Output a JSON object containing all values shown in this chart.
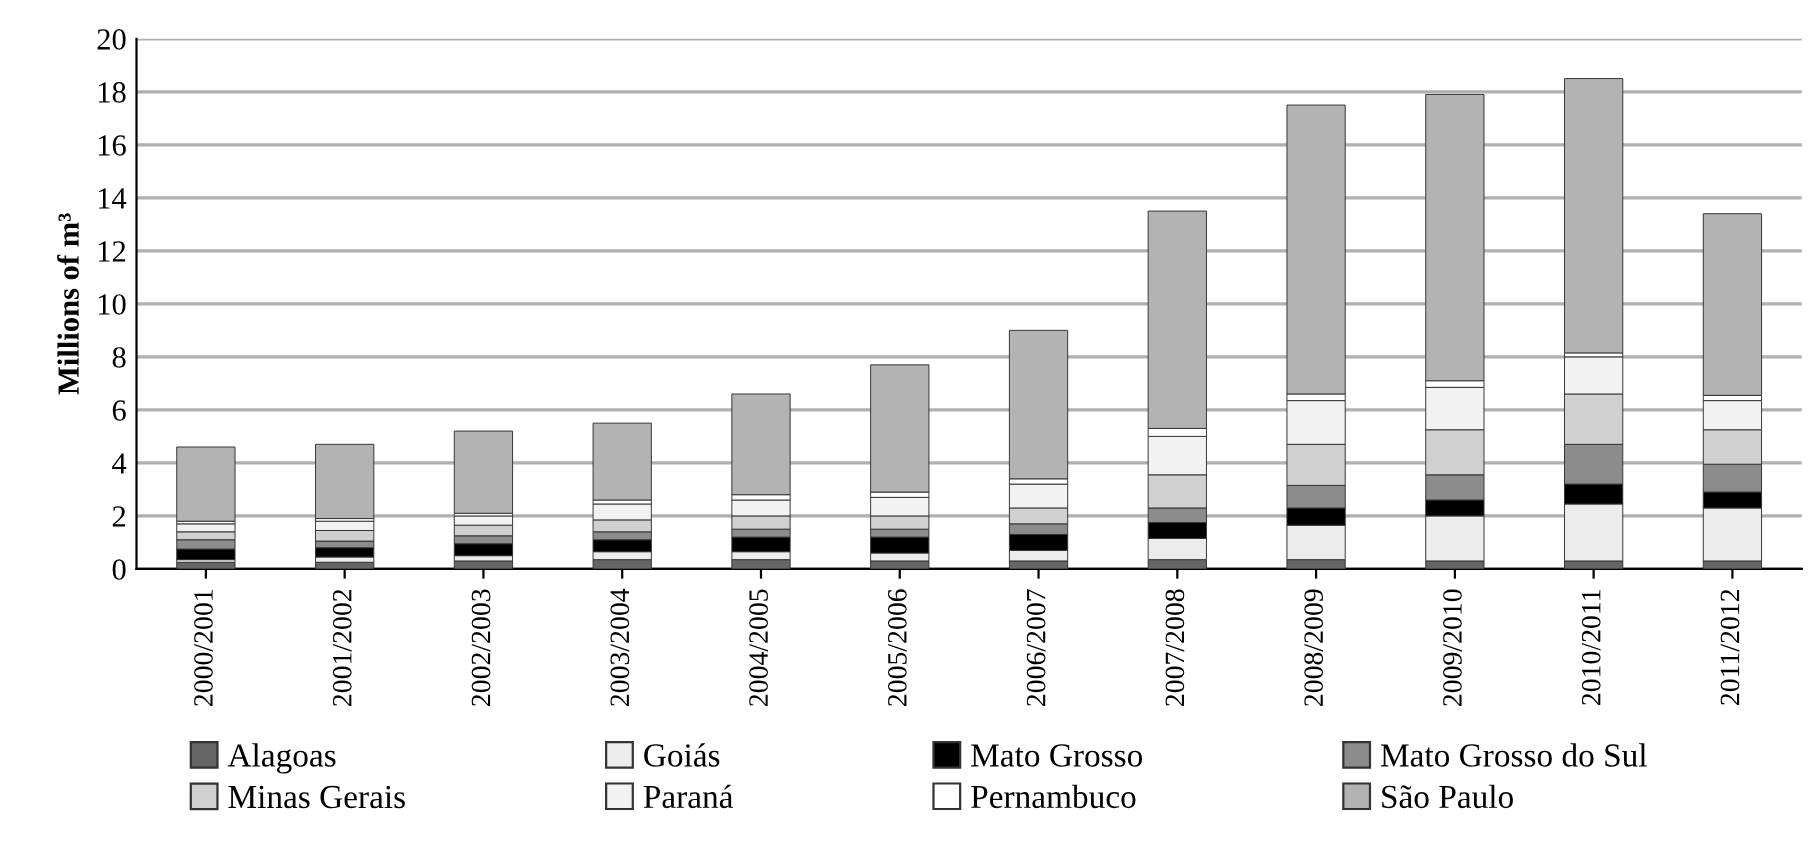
{
  "chart_data": {
    "type": "bar",
    "stacked": true,
    "ylabel": "Millions of m³",
    "categories": [
      "2000/2001",
      "2001/2002",
      "2002/2003",
      "2003/2004",
      "2004/2005",
      "2005/2006",
      "2006/2007",
      "2007/2008",
      "2008/2009",
      "2009/2010",
      "2010/2011",
      "2011/2012"
    ],
    "series": [
      {
        "name": "Alagoas",
        "color": "#666666",
        "values": [
          0.25,
          0.25,
          0.3,
          0.35,
          0.35,
          0.3,
          0.3,
          0.35,
          0.35,
          0.3,
          0.3,
          0.3
        ]
      },
      {
        "name": "Goiás",
        "color": "#ececec",
        "values": [
          0.1,
          0.2,
          0.2,
          0.3,
          0.3,
          0.3,
          0.4,
          0.8,
          1.3,
          1.7,
          2.15,
          2.0
        ]
      },
      {
        "name": "Mato Grosso",
        "color": "#000000",
        "values": [
          0.4,
          0.35,
          0.45,
          0.45,
          0.55,
          0.6,
          0.6,
          0.6,
          0.65,
          0.6,
          0.75,
          0.6
        ]
      },
      {
        "name": "Mato Grosso do Sul",
        "color": "#8c8c8c",
        "values": [
          0.35,
          0.25,
          0.3,
          0.3,
          0.3,
          0.3,
          0.4,
          0.55,
          0.85,
          0.95,
          1.5,
          1.05
        ]
      },
      {
        "name": "Minas Gerais",
        "color": "#d0d0d0",
        "values": [
          0.3,
          0.4,
          0.4,
          0.45,
          0.5,
          0.5,
          0.6,
          1.25,
          1.55,
          1.7,
          1.9,
          1.3
        ]
      },
      {
        "name": "Paraná",
        "color": "#f2f2f2",
        "values": [
          0.3,
          0.35,
          0.35,
          0.6,
          0.6,
          0.7,
          0.9,
          1.45,
          1.65,
          1.6,
          1.4,
          1.1
        ]
      },
      {
        "name": "Pernambuco",
        "color": "#ffffff",
        "values": [
          0.1,
          0.1,
          0.1,
          0.15,
          0.2,
          0.2,
          0.2,
          0.3,
          0.25,
          0.25,
          0.15,
          0.2
        ]
      },
      {
        "name": "São Paulo",
        "color": "#b3b3b3",
        "values": [
          2.8,
          2.8,
          3.1,
          2.9,
          3.8,
          4.8,
          5.6,
          8.2,
          10.9,
          10.8,
          10.35,
          6.85
        ]
      }
    ],
    "ylim": [
      0,
      20
    ],
    "yticks": [
      0,
      2,
      4,
      6,
      8,
      10,
      12,
      14,
      16,
      18,
      20
    ],
    "grid": "y",
    "legend": "bottom"
  }
}
